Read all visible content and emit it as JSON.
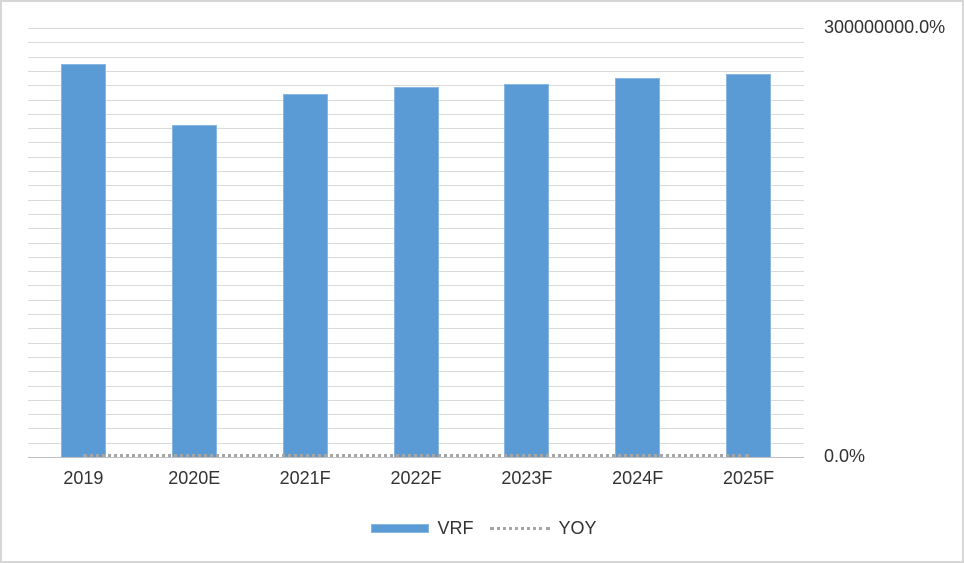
{
  "chart_data": {
    "type": "combo",
    "categories": [
      "2019",
      "2020E",
      "2021F",
      "2022F",
      "2023F",
      "2024F",
      "2025F"
    ],
    "series": [
      {
        "name": "VRF",
        "type": "bar",
        "color": "#5b9bd5",
        "values": [
          275000000,
          232000000,
          254000000,
          259000000,
          261000000,
          265000000,
          268000000
        ]
      },
      {
        "name": "YOY",
        "type": "line",
        "line_style": "dotted",
        "color": "#a6a6a6",
        "values": [
          0,
          0,
          0,
          0,
          0,
          0,
          0
        ]
      }
    ],
    "title": "",
    "xlabel": "",
    "ylabel": "",
    "y_axis": {
      "side": "right",
      "min": 0,
      "max": 300000000,
      "major_unit": 10000000,
      "format": "percent",
      "tick_labels": [
        "0.0%",
        "300000000.0%"
      ]
    },
    "grid": true,
    "gridline_color": "#dadada",
    "legend_position": "bottom"
  }
}
